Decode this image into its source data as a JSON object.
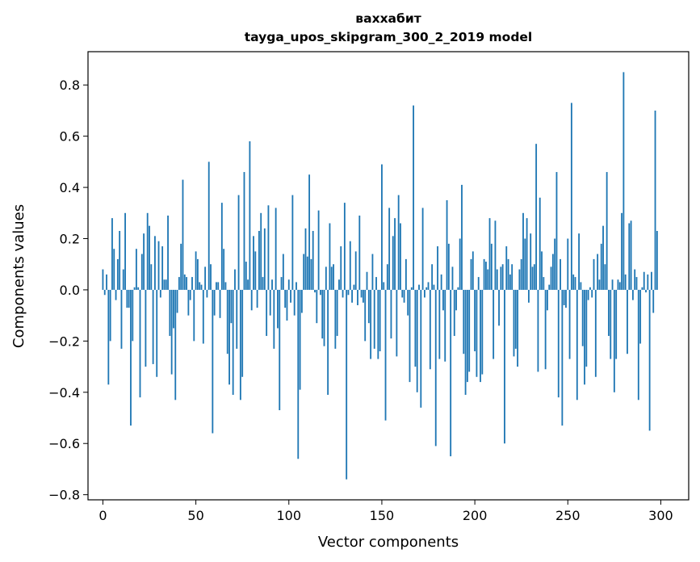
{
  "chart_data": {
    "type": "bar",
    "title": "ваххабит",
    "subtitle": "tayga_upos_skipgram_300_2_2019 model",
    "xlabel": "Vector components",
    "ylabel": "Components values",
    "xlim": [
      -8,
      315
    ],
    "ylim": [
      -0.82,
      0.93
    ],
    "xticks": [
      0,
      50,
      100,
      150,
      200,
      250,
      300
    ],
    "yticks": [
      -0.8,
      -0.6,
      -0.4,
      -0.2,
      0.0,
      0.2,
      0.4,
      0.6,
      0.8
    ],
    "ytick_labels": [
      "−0.8",
      "−0.6",
      "−0.4",
      "−0.2",
      "0.0",
      "0.2",
      "0.4",
      "0.6",
      "0.8"
    ],
    "grid": false,
    "bar_color": "#1f77b4",
    "values": [
      0.08,
      -0.02,
      0.06,
      -0.37,
      -0.2,
      0.28,
      0.16,
      -0.04,
      0.12,
      0.23,
      -0.23,
      0.08,
      0.3,
      -0.07,
      -0.07,
      -0.53,
      -0.2,
      0.01,
      0.16,
      0.01,
      -0.42,
      0.14,
      0.22,
      -0.3,
      0.3,
      0.25,
      0.1,
      -0.29,
      0.21,
      -0.34,
      0.19,
      -0.03,
      0.17,
      0.04,
      0.04,
      0.29,
      -0.18,
      -0.33,
      -0.15,
      -0.43,
      -0.09,
      0.05,
      0.18,
      0.43,
      0.06,
      0.05,
      -0.1,
      -0.04,
      0.05,
      -0.2,
      0.15,
      0.12,
      0.03,
      0.02,
      -0.21,
      0.09,
      -0.03,
      0.5,
      0.1,
      -0.56,
      -0.1,
      0.03,
      0.03,
      -0.11,
      0.34,
      0.16,
      0.03,
      -0.25,
      -0.37,
      -0.13,
      -0.41,
      0.08,
      -0.23,
      0.37,
      -0.43,
      -0.34,
      0.46,
      0.11,
      0.04,
      0.58,
      -0.08,
      0.21,
      0.15,
      -0.07,
      0.23,
      0.3,
      0.05,
      0.24,
      -0.18,
      0.33,
      -0.1,
      0.04,
      -0.23,
      0.32,
      -0.15,
      -0.47,
      0.05,
      0.14,
      -0.07,
      -0.12,
      0.04,
      -0.05,
      0.37,
      -0.1,
      0.03,
      -0.66,
      -0.39,
      -0.09,
      0.14,
      0.24,
      0.13,
      0.45,
      0.12,
      0.23,
      -0.01,
      -0.13,
      0.31,
      -0.02,
      -0.19,
      -0.22,
      0.09,
      -0.41,
      0.26,
      0.09,
      0.1,
      -0.23,
      -0.18,
      0.04,
      0.17,
      -0.03,
      0.34,
      -0.74,
      -0.02,
      0.19,
      -0.05,
      0.02,
      0.15,
      -0.06,
      0.29,
      -0.03,
      -0.05,
      -0.2,
      0.07,
      -0.13,
      -0.27,
      0.14,
      -0.23,
      0.05,
      -0.27,
      -0.24,
      0.49,
      0.03,
      -0.51,
      0.1,
      0.32,
      -0.19,
      0.21,
      0.28,
      -0.26,
      0.37,
      0.26,
      -0.03,
      -0.05,
      0.12,
      -0.1,
      -0.36,
      0.01,
      0.72,
      -0.3,
      -0.4,
      0.02,
      -0.46,
      0.32,
      -0.03,
      0.01,
      0.03,
      -0.31,
      0.1,
      0.02,
      -0.61,
      0.17,
      -0.27,
      0.06,
      -0.08,
      -0.28,
      0.35,
      0.18,
      -0.65,
      0.09,
      -0.18,
      -0.08,
      0.01,
      0.2,
      0.41,
      -0.25,
      -0.41,
      -0.36,
      -0.32,
      0.12,
      0.15,
      -0.24,
      -0.34,
      0.05,
      -0.36,
      -0.33,
      0.12,
      0.11,
      0.08,
      0.28,
      0.18,
      -0.27,
      0.27,
      0.08,
      -0.14,
      0.09,
      0.1,
      -0.6,
      0.17,
      0.12,
      0.06,
      0.1,
      -0.26,
      -0.23,
      -0.3,
      0.08,
      0.12,
      0.3,
      0.2,
      0.28,
      -0.05,
      0.22,
      0.09,
      0.1,
      0.57,
      -0.32,
      0.36,
      0.15,
      0.05,
      -0.31,
      -0.08,
      0.02,
      0.09,
      0.14,
      0.2,
      0.46,
      -0.42,
      0.12,
      -0.53,
      -0.06,
      -0.07,
      0.2,
      -0.27,
      0.73,
      0.06,
      0.05,
      -0.43,
      0.22,
      0.03,
      -0.22,
      -0.37,
      -0.3,
      -0.04,
      0.01,
      -0.03,
      0.12,
      -0.34,
      0.14,
      0.04,
      0.18,
      0.25,
      0.1,
      0.46,
      -0.18,
      -0.27,
      0.04,
      -0.4,
      -0.27,
      0.04,
      0.03,
      0.3,
      0.85,
      0.06,
      -0.25,
      0.26,
      0.27,
      -0.04,
      0.08,
      0.05,
      -0.43,
      -0.21,
      0.01,
      0.07,
      -0.01,
      0.06,
      -0.55,
      0.07,
      -0.09,
      0.7,
      0.23
    ]
  }
}
